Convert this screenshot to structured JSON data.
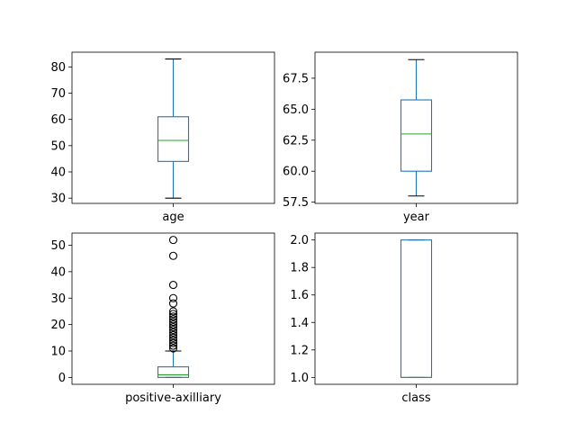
{
  "chart_data": [
    {
      "type": "box",
      "category": "age",
      "ylim": [
        28.0,
        85.6
      ],
      "yticks": [
        30,
        40,
        50,
        60,
        70,
        80
      ],
      "ytick_labels": [
        "30",
        "40",
        "50",
        "60",
        "70",
        "80"
      ],
      "stats": {
        "whislo": 30,
        "q1": 44,
        "med": 52,
        "q3": 61,
        "whishi": 83
      },
      "fliers": [],
      "grid": false
    },
    {
      "type": "box",
      "category": "year",
      "ylim": [
        57.4,
        69.6
      ],
      "yticks": [
        57.5,
        60.0,
        62.5,
        65.0,
        67.5
      ],
      "ytick_labels": [
        "57.5",
        "60.0",
        "62.5",
        "65.0",
        "67.5"
      ],
      "stats": {
        "whislo": 58,
        "q1": 60,
        "med": 63,
        "q3": 65.75,
        "whishi": 69
      },
      "fliers": [],
      "grid": false
    },
    {
      "type": "box",
      "category": "positive-axilliary",
      "ylim": [
        -2.6,
        54.6
      ],
      "yticks": [
        0,
        10,
        20,
        30,
        40,
        50
      ],
      "ytick_labels": [
        "0",
        "10",
        "20",
        "30",
        "40",
        "50"
      ],
      "stats": {
        "whislo": 0,
        "q1": 0,
        "med": 1,
        "q3": 4,
        "whishi": 10
      },
      "fliers": [
        11,
        12,
        13,
        14,
        15,
        16,
        17,
        18,
        19,
        20,
        21,
        22,
        23,
        24,
        25,
        28,
        30,
        35,
        46,
        52
      ],
      "grid": false
    },
    {
      "type": "box",
      "category": "class",
      "ylim": [
        0.95,
        2.05
      ],
      "yticks": [
        1.0,
        1.2,
        1.4,
        1.6,
        1.8,
        2.0
      ],
      "ytick_labels": [
        "1.0",
        "1.2",
        "1.4",
        "1.6",
        "1.8",
        "2.0"
      ],
      "stats": {
        "whislo": 1,
        "q1": 1,
        "med": 1,
        "q3": 2,
        "whishi": 2
      },
      "fliers": [],
      "grid": false
    }
  ],
  "colors": {
    "box": "#1f77b4",
    "median": "#2ca02c",
    "caps": "#000000",
    "fliers": "#000000",
    "axes": "#000000"
  }
}
